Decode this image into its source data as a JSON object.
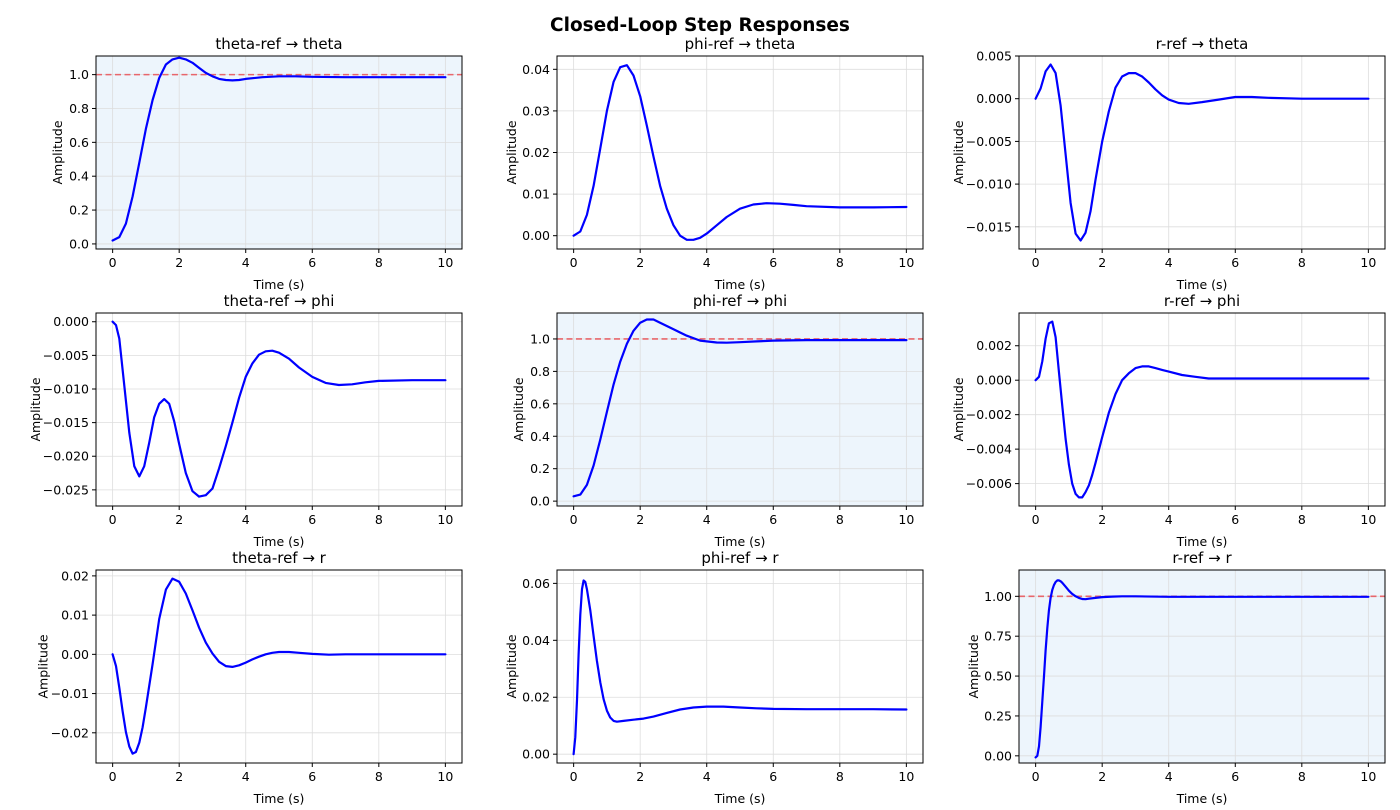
{
  "figure": {
    "suptitle": "Closed-Loop Step Responses"
  },
  "colors": {
    "line": "#0000ff",
    "reference": "#e8666b",
    "diagonal_bg": "#edf5fc",
    "grid": "#dddddd",
    "axis": "#000000"
  },
  "chart_data": [
    {
      "type": "line",
      "title": "theta-ref → theta",
      "xlabel": "Time (s)",
      "ylabel": "Amplitude",
      "diagonal": true,
      "reference_line": 1.0,
      "grid": true,
      "xlim": [
        -0.5,
        10.5
      ],
      "ylim": [
        -0.03,
        1.11
      ],
      "xticks": [
        0,
        2,
        4,
        6,
        8,
        10
      ],
      "xtick_labels": [
        "0",
        "2",
        "4",
        "6",
        "8",
        "10"
      ],
      "yticks": [
        0,
        0.2,
        0.4,
        0.6,
        0.8,
        1.0
      ],
      "ytick_labels": [
        "0.0",
        "0.2",
        "0.4",
        "0.6",
        "0.8",
        "1.0"
      ],
      "x": [
        0,
        0.2,
        0.4,
        0.6,
        0.8,
        1.0,
        1.2,
        1.4,
        1.6,
        1.8,
        2.0,
        2.2,
        2.4,
        2.6,
        2.8,
        3.0,
        3.2,
        3.4,
        3.6,
        3.8,
        4.0,
        4.5,
        5.0,
        5.5,
        6.0,
        7.0,
        8.0,
        9.0,
        10.0
      ],
      "y": [
        0.02,
        0.04,
        0.12,
        0.28,
        0.48,
        0.68,
        0.85,
        0.98,
        1.06,
        1.09,
        1.1,
        1.09,
        1.07,
        1.04,
        1.01,
        0.99,
        0.975,
        0.968,
        0.966,
        0.968,
        0.975,
        0.985,
        0.99,
        0.99,
        0.987,
        0.985,
        0.985,
        0.985,
        0.985
      ]
    },
    {
      "type": "line",
      "title": "phi-ref → theta",
      "xlabel": "Time (s)",
      "ylabel": "Amplitude",
      "diagonal": false,
      "reference_line": null,
      "grid": true,
      "xlim": [
        -0.5,
        10.5
      ],
      "ylim": [
        -0.0032,
        0.0432
      ],
      "xticks": [
        0,
        2,
        4,
        6,
        8,
        10
      ],
      "xtick_labels": [
        "0",
        "2",
        "4",
        "6",
        "8",
        "10"
      ],
      "yticks": [
        0,
        0.01,
        0.02,
        0.03,
        0.04
      ],
      "ytick_labels": [
        "0.00",
        "0.01",
        "0.02",
        "0.03",
        "0.04"
      ],
      "x": [
        0,
        0.2,
        0.4,
        0.6,
        0.8,
        1.0,
        1.2,
        1.4,
        1.6,
        1.8,
        2.0,
        2.2,
        2.4,
        2.6,
        2.8,
        3.0,
        3.2,
        3.4,
        3.6,
        3.8,
        4.0,
        4.3,
        4.6,
        5.0,
        5.4,
        5.8,
        6.2,
        6.6,
        7.0,
        8.0,
        9.0,
        10.0
      ],
      "y": [
        0.0,
        0.001,
        0.005,
        0.012,
        0.021,
        0.03,
        0.037,
        0.0405,
        0.041,
        0.0385,
        0.0335,
        0.0265,
        0.019,
        0.012,
        0.0065,
        0.0025,
        0.0,
        -0.001,
        -0.001,
        -0.0005,
        0.0005,
        0.0025,
        0.0045,
        0.0065,
        0.0075,
        0.0078,
        0.0077,
        0.0074,
        0.0071,
        0.0068,
        0.0068,
        0.0069
      ]
    },
    {
      "type": "line",
      "title": "r-ref → theta",
      "xlabel": "Time (s)",
      "ylabel": "Amplitude",
      "diagonal": false,
      "reference_line": null,
      "grid": true,
      "xlim": [
        -0.5,
        10.5
      ],
      "ylim": [
        -0.0176,
        0.005
      ],
      "xticks": [
        0,
        2,
        4,
        6,
        8,
        10
      ],
      "xtick_labels": [
        "0",
        "2",
        "4",
        "6",
        "8",
        "10"
      ],
      "yticks": [
        -0.015,
        -0.01,
        -0.005,
        0.0,
        0.005
      ],
      "ytick_labels": [
        "−0.015",
        "−0.010",
        "−0.005",
        "0.000",
        "0.005"
      ],
      "x": [
        0,
        0.15,
        0.3,
        0.45,
        0.6,
        0.75,
        0.9,
        1.05,
        1.2,
        1.35,
        1.5,
        1.65,
        1.8,
        2.0,
        2.2,
        2.4,
        2.6,
        2.8,
        3.0,
        3.2,
        3.4,
        3.6,
        3.8,
        4.0,
        4.3,
        4.6,
        5.0,
        5.5,
        6.0,
        6.5,
        7.0,
        8.0,
        9.0,
        10.0
      ],
      "y": [
        0.0,
        0.0012,
        0.0032,
        0.004,
        0.003,
        -0.0008,
        -0.0065,
        -0.0122,
        -0.0158,
        -0.0166,
        -0.0157,
        -0.0132,
        -0.0095,
        -0.005,
        -0.0015,
        0.0013,
        0.0026,
        0.003,
        0.003,
        0.0026,
        0.0019,
        0.0011,
        0.0004,
        -0.0001,
        -0.0005,
        -0.0006,
        -0.0004,
        -0.0001,
        0.0002,
        0.0002,
        0.0001,
        0.0,
        0.0,
        0.0
      ]
    },
    {
      "type": "line",
      "title": "theta-ref → phi",
      "xlabel": "Time (s)",
      "ylabel": "Amplitude",
      "diagonal": false,
      "reference_line": null,
      "grid": true,
      "xlim": [
        -0.5,
        10.5
      ],
      "ylim": [
        -0.0274,
        0.0013
      ],
      "xticks": [
        0,
        2,
        4,
        6,
        8,
        10
      ],
      "xtick_labels": [
        "0",
        "2",
        "4",
        "6",
        "8",
        "10"
      ],
      "yticks": [
        -0.025,
        -0.02,
        -0.015,
        -0.01,
        -0.005,
        0.0
      ],
      "ytick_labels": [
        "−0.025",
        "−0.020",
        "−0.015",
        "−0.010",
        "−0.005",
        "0.000"
      ],
      "x": [
        0,
        0.1,
        0.2,
        0.35,
        0.5,
        0.65,
        0.8,
        0.95,
        1.1,
        1.25,
        1.4,
        1.55,
        1.7,
        1.85,
        2.0,
        2.2,
        2.4,
        2.6,
        2.8,
        3.0,
        3.2,
        3.4,
        3.6,
        3.8,
        4.0,
        4.2,
        4.4,
        4.6,
        4.8,
        5.0,
        5.3,
        5.6,
        6.0,
        6.4,
        6.8,
        7.2,
        7.6,
        8.0,
        9.0,
        10.0
      ],
      "y": [
        0.0,
        -0.0005,
        -0.0025,
        -0.0095,
        -0.0165,
        -0.0215,
        -0.023,
        -0.0215,
        -0.018,
        -0.0142,
        -0.0122,
        -0.0115,
        -0.0122,
        -0.0148,
        -0.0182,
        -0.0225,
        -0.0252,
        -0.026,
        -0.0258,
        -0.0248,
        -0.0218,
        -0.0185,
        -0.015,
        -0.0113,
        -0.0082,
        -0.0062,
        -0.0049,
        -0.0044,
        -0.0043,
        -0.0046,
        -0.0055,
        -0.0068,
        -0.0082,
        -0.0091,
        -0.0094,
        -0.0093,
        -0.009,
        -0.0088,
        -0.0087,
        -0.0087
      ]
    },
    {
      "type": "line",
      "title": "phi-ref → phi",
      "xlabel": "Time (s)",
      "ylabel": "Amplitude",
      "diagonal": true,
      "reference_line": 1.0,
      "grid": true,
      "xlim": [
        -0.5,
        10.5
      ],
      "ylim": [
        -0.03,
        1.16
      ],
      "xticks": [
        0,
        2,
        4,
        6,
        8,
        10
      ],
      "xtick_labels": [
        "0",
        "2",
        "4",
        "6",
        "8",
        "10"
      ],
      "yticks": [
        0,
        0.2,
        0.4,
        0.6,
        0.8,
        1.0
      ],
      "ytick_labels": [
        "0.0",
        "0.2",
        "0.4",
        "0.6",
        "0.8",
        "1.0"
      ],
      "x": [
        0,
        0.2,
        0.4,
        0.6,
        0.8,
        1.0,
        1.2,
        1.4,
        1.6,
        1.8,
        2.0,
        2.2,
        2.4,
        2.6,
        2.8,
        3.0,
        3.2,
        3.4,
        3.6,
        3.8,
        4.0,
        4.3,
        4.6,
        5.0,
        5.5,
        6.0,
        7.0,
        8.0,
        9.0,
        10.0
      ],
      "y": [
        0.03,
        0.04,
        0.1,
        0.22,
        0.38,
        0.55,
        0.72,
        0.86,
        0.97,
        1.05,
        1.1,
        1.12,
        1.12,
        1.1,
        1.08,
        1.06,
        1.04,
        1.02,
        1.005,
        0.99,
        0.985,
        0.978,
        0.977,
        0.98,
        0.985,
        0.99,
        0.993,
        0.993,
        0.993,
        0.993
      ]
    },
    {
      "type": "line",
      "title": "r-ref → phi",
      "xlabel": "Time (s)",
      "ylabel": "Amplitude",
      "diagonal": false,
      "reference_line": null,
      "grid": true,
      "xlim": [
        -0.5,
        10.5
      ],
      "ylim": [
        -0.0073,
        0.0039
      ],
      "xticks": [
        0,
        2,
        4,
        6,
        8,
        10
      ],
      "xtick_labels": [
        "0",
        "2",
        "4",
        "6",
        "8",
        "10"
      ],
      "yticks": [
        -0.006,
        -0.004,
        -0.002,
        0.0,
        0.002
      ],
      "ytick_labels": [
        "−0.006",
        "−0.004",
        "−0.002",
        "0.000",
        "0.002"
      ],
      "x": [
        0,
        0.1,
        0.2,
        0.3,
        0.4,
        0.5,
        0.6,
        0.7,
        0.8,
        0.9,
        1.0,
        1.1,
        1.2,
        1.3,
        1.4,
        1.5,
        1.6,
        1.7,
        1.8,
        2.0,
        2.2,
        2.4,
        2.6,
        2.8,
        3.0,
        3.2,
        3.4,
        3.6,
        3.8,
        4.0,
        4.4,
        4.8,
        5.2,
        5.6,
        6.0,
        7.0,
        8.0,
        9.0,
        10.0
      ],
      "y": [
        0.0,
        0.0002,
        0.0011,
        0.0024,
        0.0033,
        0.0034,
        0.0025,
        0.0005,
        -0.0015,
        -0.0034,
        -0.0049,
        -0.006,
        -0.0066,
        -0.0068,
        -0.0068,
        -0.0065,
        -0.0061,
        -0.0055,
        -0.0048,
        -0.0033,
        -0.0019,
        -0.0008,
        0.0,
        0.0004,
        0.0007,
        0.0008,
        0.0008,
        0.0007,
        0.0006,
        0.0005,
        0.0003,
        0.0002,
        0.0001,
        0.0001,
        0.0001,
        0.0001,
        0.0001,
        0.0001,
        0.0001
      ]
    },
    {
      "type": "line",
      "title": "theta-ref → r",
      "xlabel": "Time (s)",
      "ylabel": "Amplitude",
      "diagonal": false,
      "reference_line": null,
      "grid": true,
      "xlim": [
        -0.5,
        10.5
      ],
      "ylim": [
        -0.0277,
        0.0215
      ],
      "xticks": [
        0,
        2,
        4,
        6,
        8,
        10
      ],
      "xtick_labels": [
        "0",
        "2",
        "4",
        "6",
        "8",
        "10"
      ],
      "yticks": [
        -0.02,
        -0.01,
        0.0,
        0.01,
        0.02
      ],
      "ytick_labels": [
        "−0.02",
        "−0.01",
        "0.00",
        "0.01",
        "0.02"
      ],
      "x": [
        0,
        0.1,
        0.2,
        0.3,
        0.4,
        0.5,
        0.6,
        0.7,
        0.8,
        0.9,
        1.0,
        1.2,
        1.4,
        1.6,
        1.8,
        2.0,
        2.2,
        2.4,
        2.6,
        2.8,
        3.0,
        3.2,
        3.4,
        3.6,
        3.8,
        4.0,
        4.2,
        4.4,
        4.6,
        4.8,
        5.0,
        5.3,
        5.6,
        6.0,
        6.5,
        7.0,
        8.0,
        9.0,
        10.0
      ],
      "y": [
        0.0,
        -0.003,
        -0.0085,
        -0.0145,
        -0.0198,
        -0.0235,
        -0.0253,
        -0.0249,
        -0.0225,
        -0.0186,
        -0.0135,
        -0.0025,
        0.009,
        0.0165,
        0.0193,
        0.0185,
        0.0155,
        0.0112,
        0.0068,
        0.003,
        0.0002,
        -0.0019,
        -0.003,
        -0.0032,
        -0.0028,
        -0.0021,
        -0.0013,
        -0.0006,
        0.0,
        0.0004,
        0.0006,
        0.0006,
        0.0004,
        0.0001,
        -0.0001,
        0.0,
        0.0,
        0.0,
        0.0
      ]
    },
    {
      "type": "line",
      "title": "phi-ref → r",
      "xlabel": "Time (s)",
      "ylabel": "Amplitude",
      "diagonal": false,
      "reference_line": null,
      "grid": true,
      "xlim": [
        -0.5,
        10.5
      ],
      "ylim": [
        -0.0031,
        0.0647
      ],
      "xticks": [
        0,
        2,
        4,
        6,
        8,
        10
      ],
      "xtick_labels": [
        "0",
        "2",
        "4",
        "6",
        "8",
        "10"
      ],
      "yticks": [
        0,
        0.02,
        0.04,
        0.06
      ],
      "ytick_labels": [
        "0.00",
        "0.02",
        "0.04",
        "0.06"
      ],
      "x": [
        0,
        0.05,
        0.1,
        0.15,
        0.2,
        0.25,
        0.3,
        0.35,
        0.4,
        0.5,
        0.6,
        0.7,
        0.8,
        0.9,
        1.0,
        1.1,
        1.2,
        1.3,
        1.5,
        1.8,
        2.1,
        2.4,
        2.8,
        3.2,
        3.6,
        4.0,
        4.5,
        5.0,
        5.5,
        6.0,
        7.0,
        8.0,
        9.0,
        10.0
      ],
      "y": [
        0.0,
        0.006,
        0.019,
        0.035,
        0.049,
        0.058,
        0.061,
        0.0605,
        0.058,
        0.0505,
        0.0415,
        0.0328,
        0.0252,
        0.0193,
        0.0153,
        0.0129,
        0.0117,
        0.0114,
        0.0117,
        0.0121,
        0.0125,
        0.0132,
        0.0145,
        0.0157,
        0.0164,
        0.0167,
        0.0167,
        0.0164,
        0.0161,
        0.0159,
        0.0158,
        0.0158,
        0.0158,
        0.0157
      ]
    },
    {
      "type": "line",
      "title": "r-ref → r",
      "xlabel": "Time (s)",
      "ylabel": "Amplitude",
      "diagonal": true,
      "reference_line": 1.0,
      "grid": true,
      "xlim": [
        -0.5,
        10.5
      ],
      "ylim": [
        -0.045,
        1.165
      ],
      "xticks": [
        0,
        2,
        4,
        6,
        8,
        10
      ],
      "xtick_labels": [
        "0",
        "2",
        "4",
        "6",
        "8",
        "10"
      ],
      "yticks": [
        0,
        0.25,
        0.5,
        0.75,
        1.0
      ],
      "ytick_labels": [
        "0.00",
        "0.25",
        "0.50",
        "0.75",
        "1.00"
      ],
      "x": [
        0,
        0.05,
        0.1,
        0.15,
        0.2,
        0.25,
        0.3,
        0.35,
        0.4,
        0.45,
        0.5,
        0.55,
        0.6,
        0.65,
        0.7,
        0.75,
        0.8,
        0.9,
        1.0,
        1.1,
        1.2,
        1.3,
        1.4,
        1.5,
        1.6,
        1.8,
        2.0,
        2.3,
        2.6,
        3.0,
        4.0,
        5.0,
        6.0,
        7.0,
        8.0,
        9.0,
        10.0
      ],
      "y": [
        -0.01,
        0.0,
        0.06,
        0.18,
        0.34,
        0.5,
        0.66,
        0.8,
        0.91,
        0.99,
        1.04,
        1.07,
        1.09,
        1.1,
        1.1,
        1.095,
        1.085,
        1.06,
        1.035,
        1.015,
        1.0,
        0.99,
        0.983,
        0.982,
        0.985,
        0.99,
        0.995,
        0.998,
        1.0,
        1.0,
        0.997,
        0.997,
        0.997,
        0.997,
        0.997,
        0.997,
        0.997
      ]
    }
  ]
}
